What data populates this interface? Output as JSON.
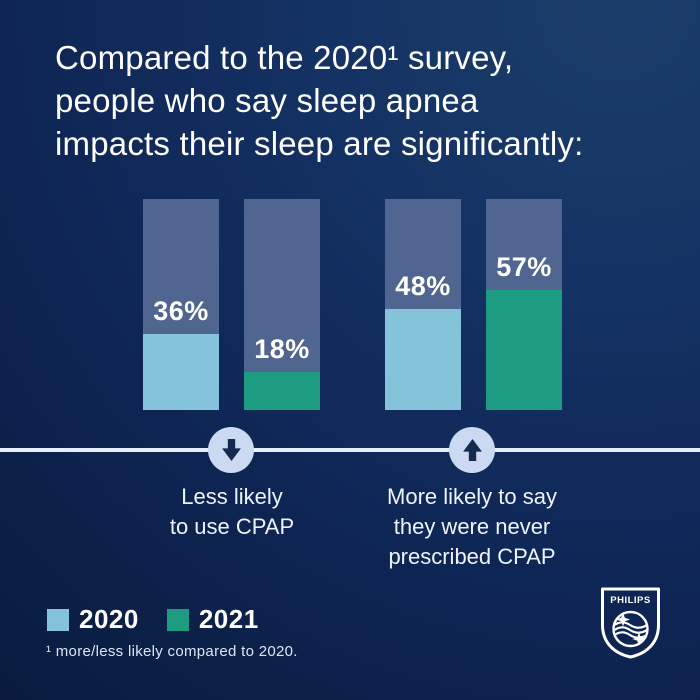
{
  "title": {
    "line1": "Compared to the 2020¹ survey,",
    "line2": "people who say sleep apnea",
    "line3": "impacts their sleep are significantly:"
  },
  "chart_data": {
    "type": "bar",
    "ylim": [
      0,
      100
    ],
    "unit": "%",
    "track_color": "#50658f",
    "categories": [
      "Less likely to use CPAP",
      "More likely to say they were never prescribed CPAP"
    ],
    "series": [
      {
        "name": "2020",
        "color": "#85c3db",
        "values": [
          36,
          48
        ]
      },
      {
        "name": "2021",
        "color": "#1e9c82",
        "values": [
          18,
          57
        ]
      }
    ],
    "bars": [
      {
        "series": "2020",
        "category": "Less likely to use CPAP",
        "value": 36,
        "label": "36%"
      },
      {
        "series": "2021",
        "category": "Less likely to use CPAP",
        "value": 18,
        "label": "18%"
      },
      {
        "series": "2020",
        "category": "More likely to say they were never prescribed CPAP",
        "value": 48,
        "label": "48%"
      },
      {
        "series": "2021",
        "category": "More likely to say they were never prescribed CPAP",
        "value": 57,
        "label": "57%"
      }
    ],
    "legend_position": "bottom-left"
  },
  "annotations": {
    "down": {
      "icon": "arrow-down",
      "lines": [
        "Less likely",
        "to use CPAP"
      ]
    },
    "up": {
      "icon": "arrow-up",
      "lines": [
        "More likely to say",
        "they were never",
        "prescribed CPAP"
      ]
    }
  },
  "legend": {
    "items": [
      {
        "label": "2020",
        "color": "#85c3db"
      },
      {
        "label": "2021",
        "color": "#1e9c82"
      }
    ]
  },
  "footnote": "¹ more/less likely compared to 2020.",
  "logo": {
    "brand": "PHILIPS"
  },
  "colors": {
    "accent_line": "#e6eefb",
    "arrow_circle": "#cbd9f3",
    "arrow_glyph": "#16294f",
    "background_dark": "#081737",
    "background_light": "#1b3e68"
  }
}
